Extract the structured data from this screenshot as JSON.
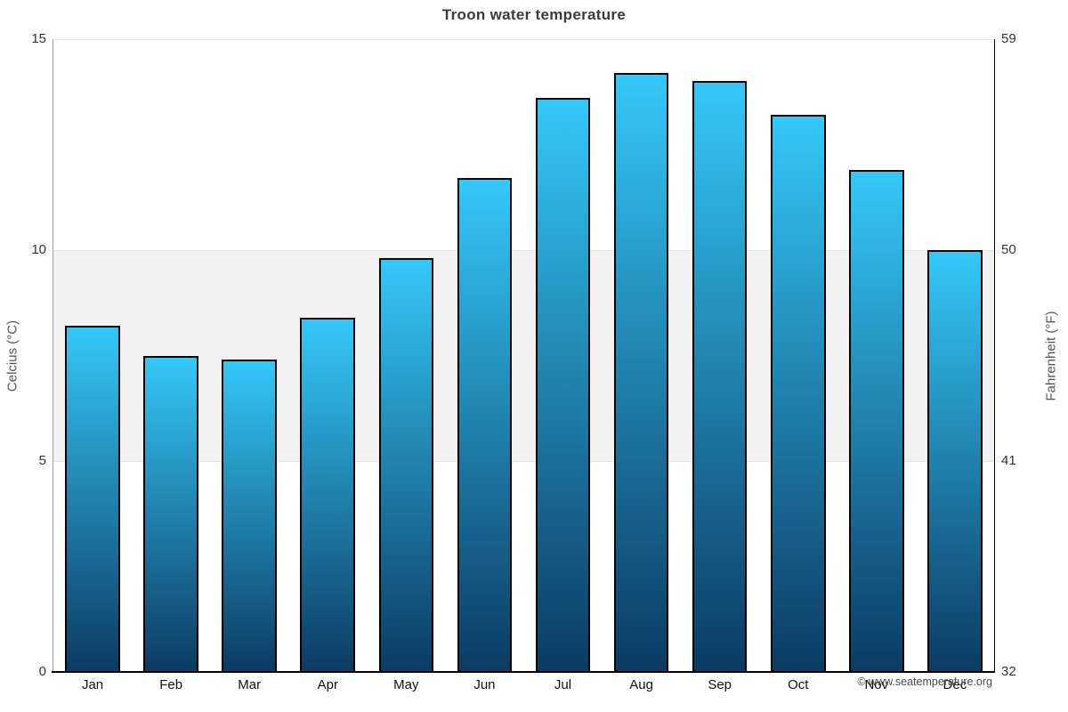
{
  "chart_data": {
    "type": "bar",
    "title": "Troon water temperature",
    "categories": [
      "Jan",
      "Feb",
      "Mar",
      "Apr",
      "May",
      "Jun",
      "Jul",
      "Aug",
      "Sep",
      "Oct",
      "Nov",
      "Dec"
    ],
    "series": [
      {
        "name": "Water temperature",
        "unit": "°C",
        "values": [
          8.2,
          7.5,
          7.4,
          8.4,
          9.8,
          11.7,
          13.6,
          14.2,
          14.0,
          13.2,
          11.9,
          10.0
        ]
      }
    ],
    "ylabel_left": "Celcius (°C)",
    "ylabel_right": "Fahrenheit (°F)",
    "yticks_celsius": [
      0,
      5,
      10,
      15
    ],
    "yticks_fahrenheit": [
      32,
      41,
      50,
      59
    ],
    "ylim_celsius": [
      0,
      15
    ],
    "plot_band_celsius": [
      5,
      10
    ],
    "gridlines_celsius": [
      5,
      10,
      15
    ],
    "legend": "none",
    "xlabel": ""
  },
  "colors": {
    "bar_gradient_top": "#34c8f8",
    "bar_gradient_bottom": "#0b3b63",
    "bar_border": "#000000",
    "plot_band": "#f2f2f2",
    "gridline": "#e6e6e6"
  },
  "watermark": "© www.seatemperature.org"
}
